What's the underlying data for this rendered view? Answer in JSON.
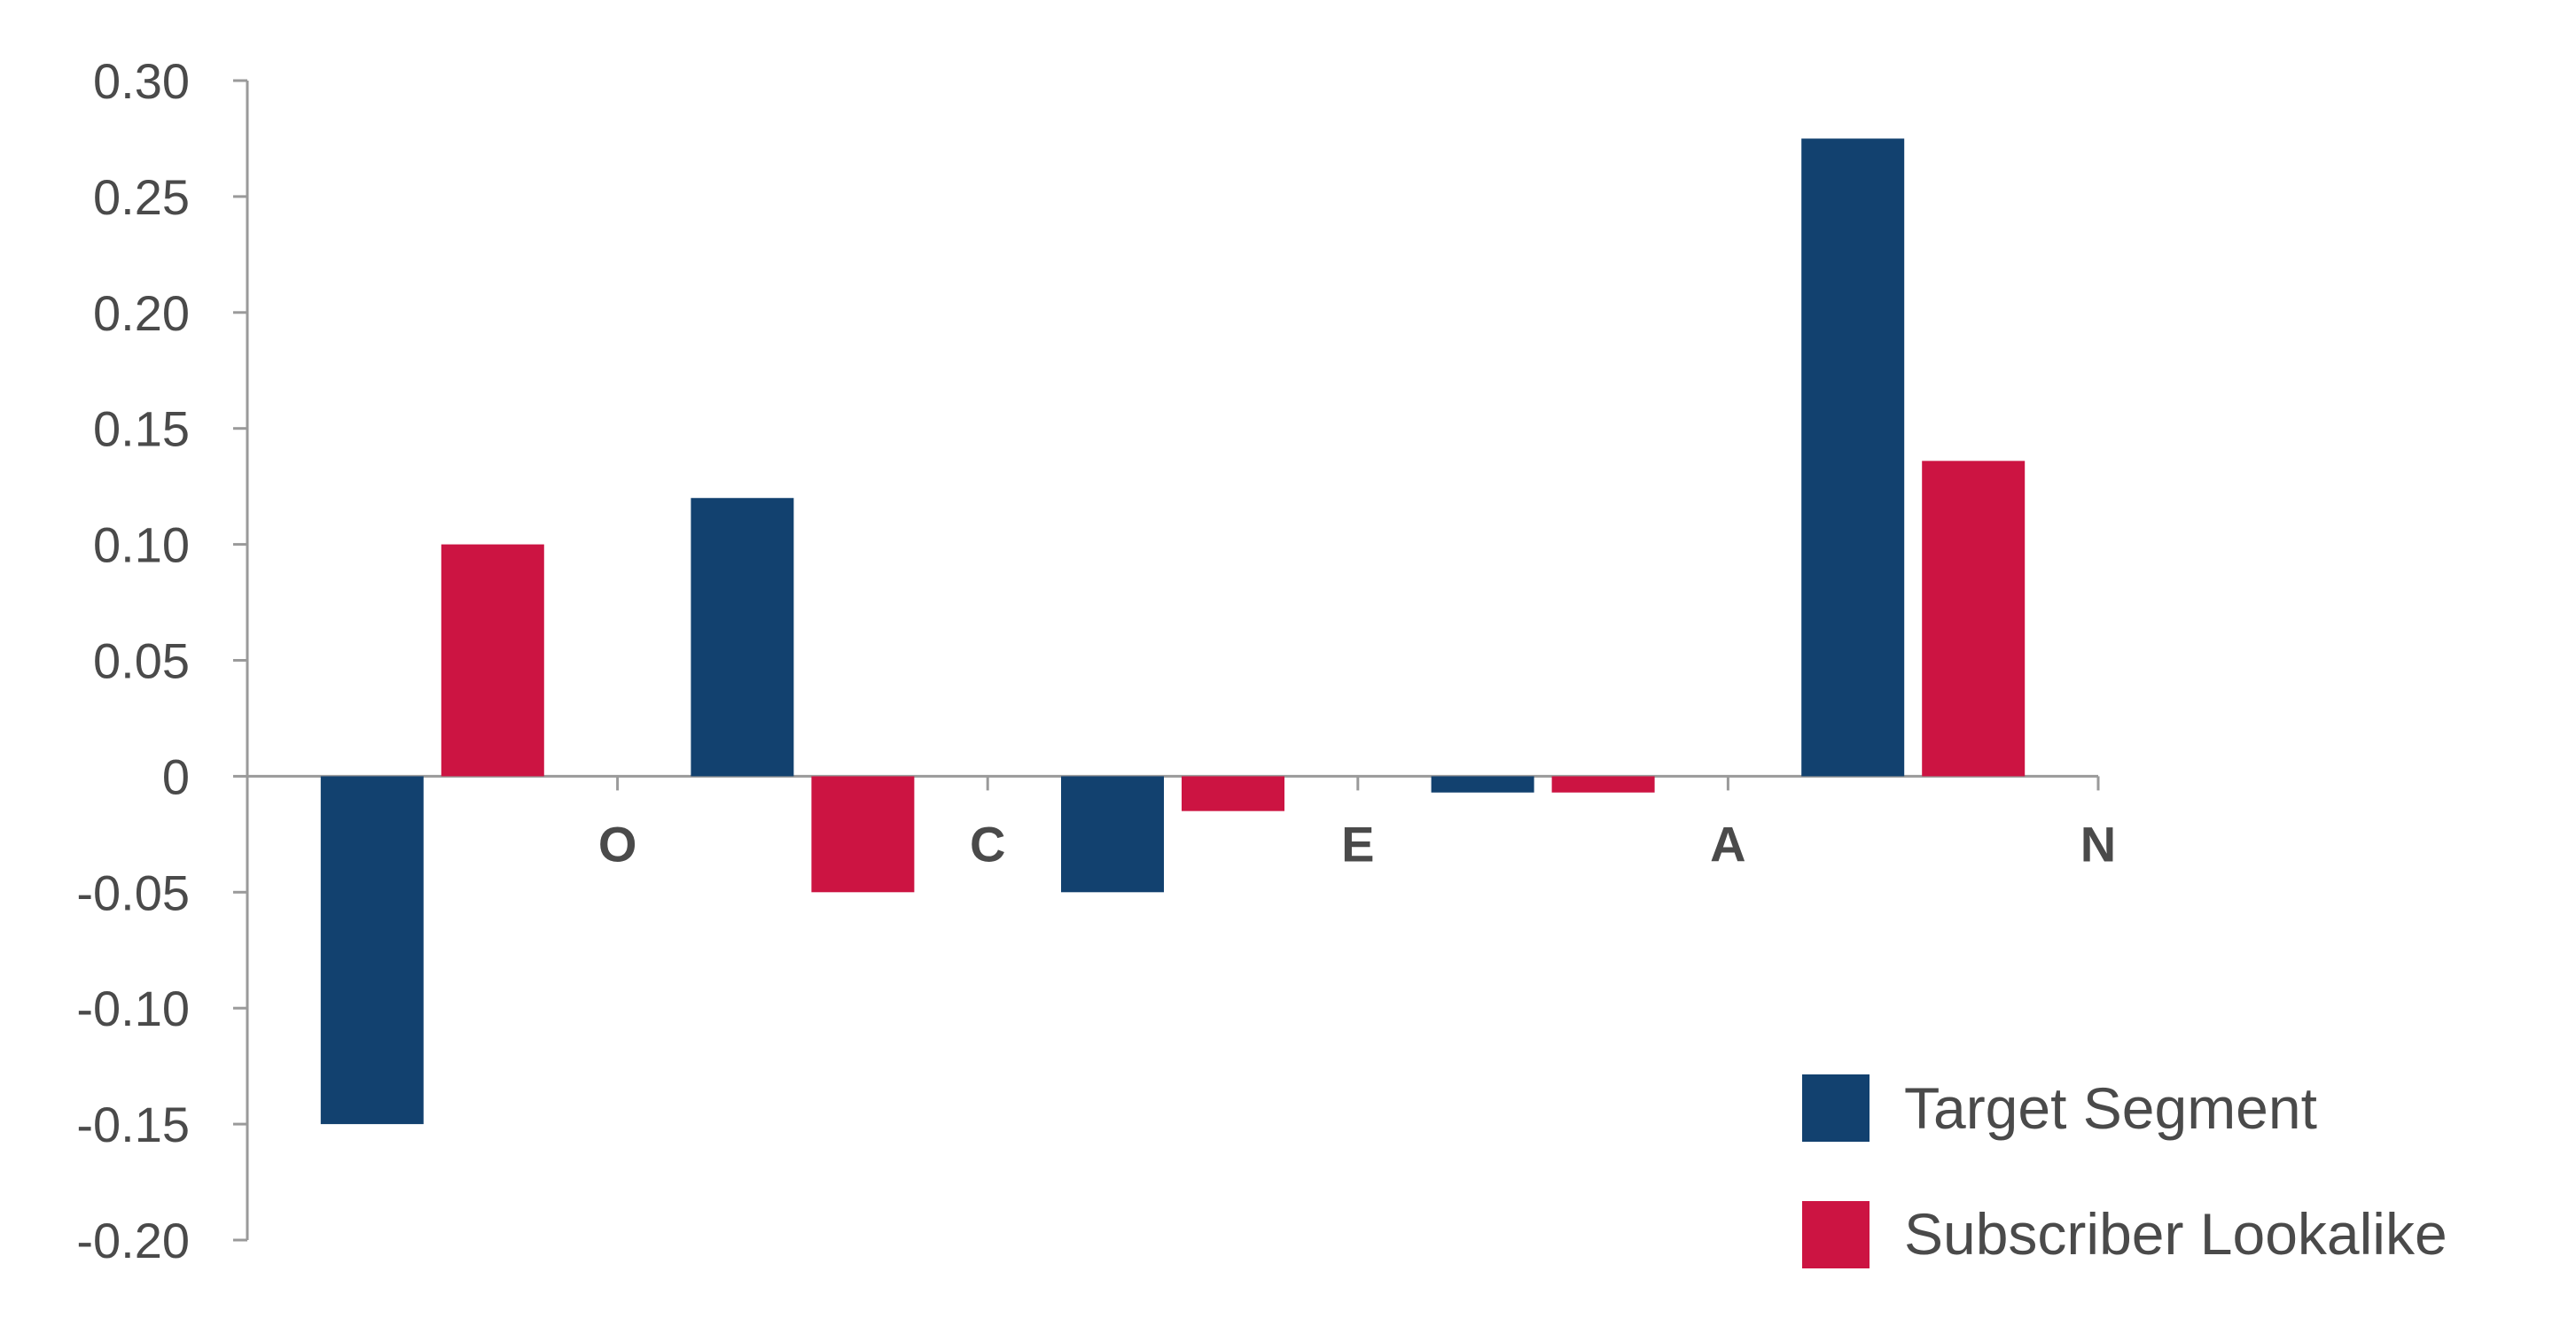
{
  "chart_data": {
    "type": "bar",
    "categories": [
      "O",
      "C",
      "E",
      "A",
      "N"
    ],
    "series": [
      {
        "name": "Target Segment",
        "color": "#12416f",
        "values": [
          -0.15,
          0.12,
          -0.05,
          -0.007,
          0.275
        ]
      },
      {
        "name": "Subscriber Lookalike",
        "color": "#cc1442",
        "values": [
          0.1,
          -0.05,
          -0.015,
          -0.007,
          0.136
        ]
      }
    ],
    "ylim": [
      -0.2,
      0.3
    ],
    "yticks": [
      "-0.20",
      "-0.15",
      "-0.10",
      "-0.05",
      "0",
      "0.05",
      "0.10",
      "0.15",
      "0.20",
      "0.25",
      "0.30"
    ],
    "ytick_values": [
      -0.2,
      -0.15,
      -0.1,
      -0.05,
      0,
      0.05,
      0.1,
      0.15,
      0.2,
      0.25,
      0.3
    ],
    "grid": false,
    "legend_position": "bottom-right",
    "axis_color": "#9a9a9a"
  }
}
